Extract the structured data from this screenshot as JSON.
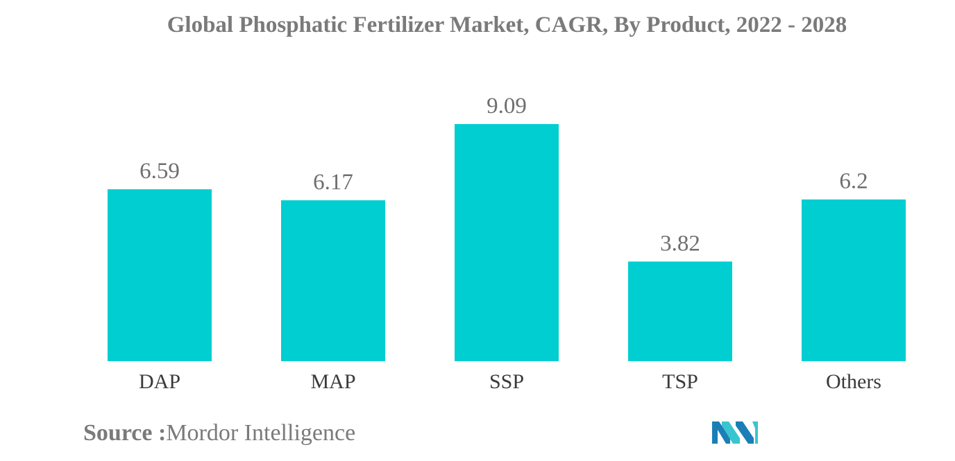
{
  "chart_data": {
    "type": "bar",
    "title": "Global Phosphatic Fertilizer Market, CAGR, By Product, 2022 - 2028",
    "categories": [
      "DAP",
      "MAP",
      "SSP",
      "TSP",
      "Others"
    ],
    "values": [
      6.59,
      6.17,
      9.09,
      3.82,
      6.2
    ],
    "value_labels": [
      "6.59",
      "6.17",
      "9.09",
      "3.82",
      "6.2"
    ],
    "xlabel": "",
    "ylabel": "",
    "ylim": [
      0,
      9.09
    ],
    "grid": false,
    "legend": "none",
    "bar_color": "#00CED1"
  },
  "source": {
    "key": "Source :",
    "value": "Mordor Intelligence"
  },
  "logo": {
    "icon": "mordor-intelligence-logo",
    "colors": [
      "#1b7fb5",
      "#39c5cf"
    ]
  }
}
